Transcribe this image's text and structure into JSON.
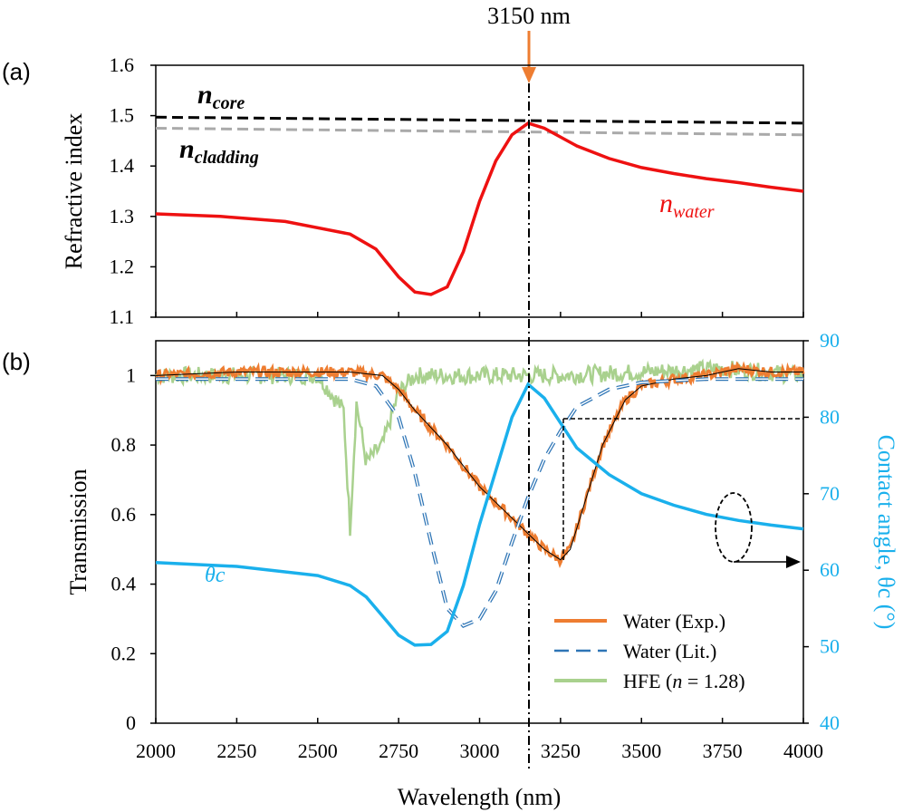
{
  "chart_data": [
    {
      "panel": "(a)",
      "type": "line",
      "ylabel": "Refractive index",
      "ylim": [
        1.1,
        1.6
      ],
      "yticks": [
        "1.1",
        "1.2",
        "1.3",
        "1.4",
        "1.5",
        "1.6"
      ],
      "xlim": [
        2000,
        4000
      ],
      "annotation_top": "3150 nm",
      "annotation_x": 3150,
      "labels": {
        "n_core": {
          "base": "n",
          "sub": "core"
        },
        "n_cladding": {
          "base": "n",
          "sub": "cladding"
        },
        "n_water": {
          "base": "n",
          "sub": "water"
        }
      },
      "series": [
        {
          "key": "n_core",
          "color": "#000000",
          "dash": true,
          "x": [
            2000,
            4000
          ],
          "y": [
            1.497,
            1.485
          ]
        },
        {
          "key": "n_cladding",
          "color": "#aaaaaa",
          "dash": true,
          "x": [
            2000,
            4000
          ],
          "y": [
            1.475,
            1.462
          ]
        },
        {
          "key": "n_water",
          "color": "#ee1111",
          "dash": false,
          "x": [
            2000,
            2200,
            2400,
            2600,
            2680,
            2750,
            2800,
            2850,
            2900,
            2950,
            3000,
            3050,
            3100,
            3150,
            3200,
            3300,
            3400,
            3500,
            3600,
            3700,
            3800,
            3900,
            4000
          ],
          "y": [
            1.305,
            1.3,
            1.29,
            1.265,
            1.235,
            1.18,
            1.15,
            1.145,
            1.16,
            1.23,
            1.33,
            1.41,
            1.462,
            1.485,
            1.475,
            1.44,
            1.415,
            1.397,
            1.385,
            1.375,
            1.367,
            1.358,
            1.35
          ]
        }
      ]
    },
    {
      "panel": "(b)",
      "type": "line",
      "xlabel": "Wavelength (nm)",
      "ylabel": "Transmission",
      "ylabel_right": "Contact angle, θc (°)",
      "ylim": [
        0,
        1.1
      ],
      "yticks": [
        "0",
        "0.2",
        "0.4",
        "0.6",
        "0.8",
        "1"
      ],
      "ylim_right": [
        40,
        90
      ],
      "yticks_right": [
        "40",
        "50",
        "60",
        "70",
        "80",
        "90"
      ],
      "xlim": [
        2000,
        4000
      ],
      "xticks": [
        "2000",
        "2250",
        "2500",
        "2750",
        "3000",
        "3250",
        "3500",
        "3750",
        "4000"
      ],
      "theta_label": "θc",
      "legend": {
        "position": "bottom-right",
        "entries": [
          {
            "label": "Water (Exp.)",
            "color": "#ee7d31",
            "style": "solid"
          },
          {
            "label": "Water (Lit.)",
            "color": "#2e75b6",
            "style": "dash"
          },
          {
            "label": "HFE (",
            "italic": "n",
            "label_after": " = 1.28)",
            "color": "#a9d18e",
            "style": "solid"
          }
        ]
      },
      "series": [
        {
          "name": "Water (Exp.)",
          "color": "#ee7d31",
          "x": [
            2000,
            2250,
            2500,
            2600,
            2700,
            2750,
            2800,
            2900,
            3000,
            3100,
            3200,
            3250,
            3280,
            3320,
            3380,
            3450,
            3500,
            3600,
            3700,
            3800,
            3900,
            4000
          ],
          "y": [
            1.0,
            1.01,
            1.01,
            1.01,
            1.0,
            0.96,
            0.9,
            0.8,
            0.68,
            0.59,
            0.5,
            0.47,
            0.5,
            0.62,
            0.8,
            0.93,
            0.97,
            0.99,
            1.0,
            1.02,
            1.01,
            1.01
          ]
        },
        {
          "name": "Water (Lit.)",
          "color": "#2e75b6",
          "x": [
            2000,
            2500,
            2600,
            2680,
            2750,
            2800,
            2850,
            2900,
            2950,
            3000,
            3050,
            3100,
            3150,
            3200,
            3250,
            3300,
            3400,
            3500,
            3600,
            3700,
            3800,
            4000
          ],
          "y": [
            0.99,
            0.99,
            0.99,
            0.97,
            0.88,
            0.72,
            0.52,
            0.33,
            0.28,
            0.3,
            0.38,
            0.52,
            0.65,
            0.76,
            0.84,
            0.91,
            0.96,
            0.98,
            0.985,
            0.99,
            0.99,
            0.99
          ]
        },
        {
          "name": "HFE (n = 1.28)",
          "color": "#a9d18e",
          "x": [
            2000,
            2250,
            2500,
            2580,
            2600,
            2620,
            2650,
            2700,
            2750,
            2800,
            3000,
            3250,
            3500,
            3750,
            4000
          ],
          "y": [
            1.0,
            1.0,
            1.0,
            0.9,
            0.56,
            0.92,
            0.75,
            0.8,
            0.95,
            1.0,
            1.0,
            1.0,
            1.01,
            1.02,
            1.0
          ]
        },
        {
          "name": "θc",
          "axis": "right",
          "color": "#1ab0ec",
          "x": [
            2000,
            2250,
            2500,
            2600,
            2650,
            2700,
            2750,
            2800,
            2850,
            2900,
            2950,
            3000,
            3050,
            3100,
            3150,
            3200,
            3300,
            3400,
            3500,
            3600,
            3700,
            3800,
            3900,
            4000
          ],
          "y": [
            61.0,
            60.5,
            59.3,
            58.0,
            56.5,
            54.0,
            51.5,
            50.2,
            50.3,
            52.0,
            58.0,
            66.0,
            73.0,
            80.0,
            84.3,
            82.5,
            76.0,
            72.5,
            70.0,
            68.5,
            67.3,
            66.5,
            65.9,
            65.4
          ]
        }
      ]
    }
  ]
}
